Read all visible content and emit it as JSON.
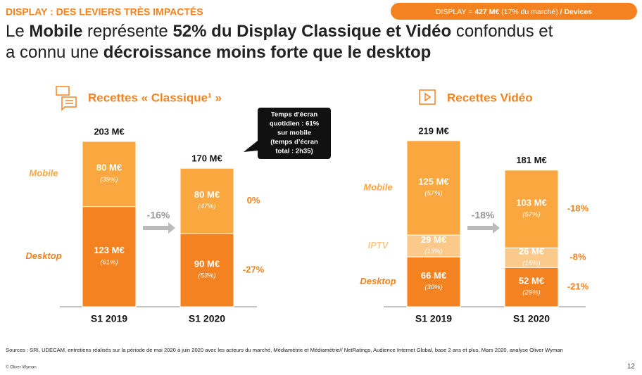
{
  "section": "DISPLAY : DES LEVIERS TRÈS IMPACTÉS",
  "badge": [
    "DISPLAY = ",
    "427 M€",
    " (17% du marché) ",
    "/ Devices"
  ],
  "headline": {
    "line1": [
      "Le ",
      "Mobile",
      " représente ",
      "52% du Display Classique et Vidéo",
      " confondus et"
    ],
    "line2": [
      "a connu une ",
      "décroissance moins forte que le desktop"
    ]
  },
  "callout": [
    "Temps d’écran",
    "quotidien : 61%",
    "sur mobile",
    "(temps d’écran",
    "total : 2h35)"
  ],
  "chart_data": [
    {
      "type": "stacked_bar",
      "title": "Recettes « Classique¹ »",
      "categories": [
        "S1 2019",
        "S1 2020"
      ],
      "series": [
        {
          "name": "Desktop",
          "color": "#f58220",
          "values": [
            123,
            90
          ],
          "value_labels": [
            "123 M€",
            "90 M€"
          ],
          "share_labels": [
            "(61%)",
            "(53%)"
          ],
          "change": "-27%"
        },
        {
          "name": "Mobile",
          "color": "#f9a73e",
          "values": [
            80,
            80
          ],
          "value_labels": [
            "80 M€",
            "80 M€"
          ],
          "share_labels": [
            "(39%)",
            "(47%)"
          ],
          "change": "0%"
        }
      ],
      "totals": {
        "values": [
          203,
          170
        ],
        "value_labels": [
          "203 M€",
          "170 M€"
        ]
      },
      "change": "-16%"
    },
    {
      "type": "stacked_bar",
      "title": "Recettes Vidéo",
      "categories": [
        "S1 2019",
        "S1 2020"
      ],
      "series": [
        {
          "name": "Desktop",
          "color": "#f58220",
          "values": [
            66,
            52
          ],
          "value_labels": [
            "66 M€",
            "52 M€"
          ],
          "share_labels": [
            "(30%)",
            "(29%)"
          ],
          "change": "-21%"
        },
        {
          "name": "IPTV",
          "color": "#fbc98a",
          "values": [
            29,
            26
          ],
          "value_labels": [
            "29 M€",
            "26 M€"
          ],
          "share_labels": [
            "(13%)",
            "(15%)"
          ],
          "change": "-8%"
        },
        {
          "name": "Mobile",
          "color": "#f9a73e",
          "values": [
            125,
            103
          ],
          "value_labels": [
            "125 M€",
            "103 M€"
          ],
          "share_labels": [
            "(57%)",
            "(57%)"
          ],
          "change": "-18%"
        }
      ],
      "totals": {
        "values": [
          219,
          181
        ],
        "value_labels": [
          "219 M€",
          "181 M€"
        ]
      },
      "change": "-18%"
    }
  ],
  "sources": "Sources : SRI, UDECAM, entretiens réalisés sur la période de mai 2020 à juin 2020 avec les acteurs du marché, Médiamétrie et Médiamétrie// NetRatings, Audience Internet Global, base 2 ans et plus, Mars 2020, analyse Oliver Wyman",
  "copyright": "© Oliver Wyman",
  "page": "12"
}
